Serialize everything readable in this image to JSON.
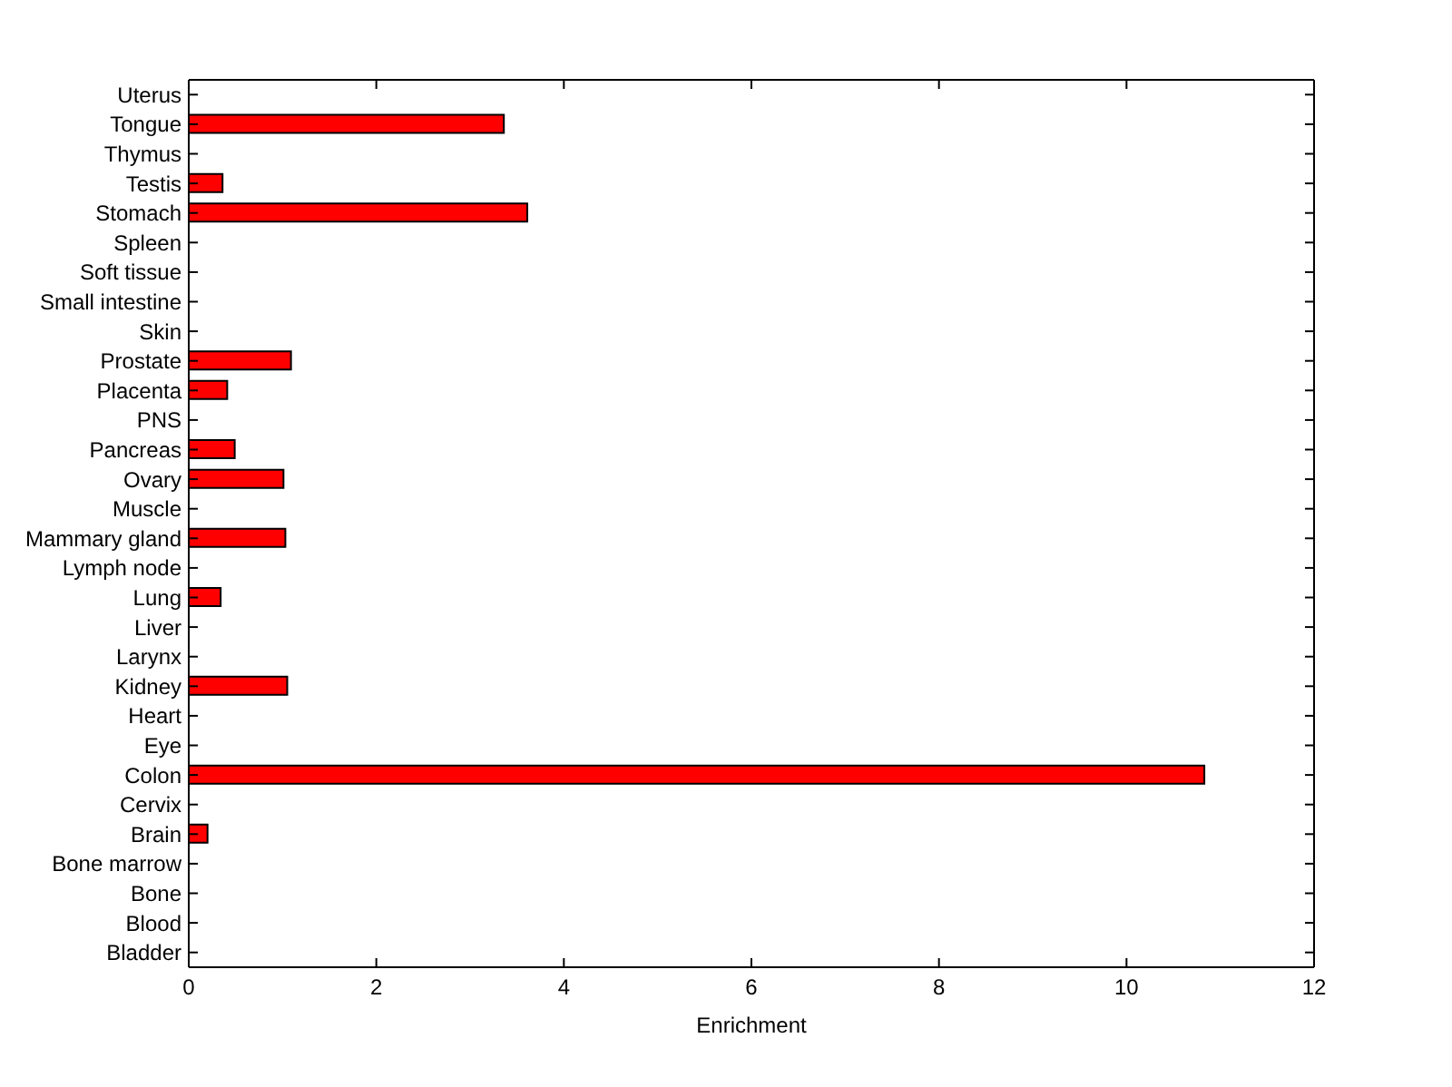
{
  "chart_data": {
    "type": "bar",
    "orientation": "horizontal",
    "xlabel": "Enrichment",
    "categories": [
      "Uterus",
      "Tongue",
      "Thymus",
      "Testis",
      "Stomach",
      "Spleen",
      "Soft tissue",
      "Small intestine",
      "Skin",
      "Prostate",
      "Placenta",
      "PNS",
      "Pancreas",
      "Ovary",
      "Muscle",
      "Mammary gland",
      "Lymph node",
      "Lung",
      "Liver",
      "Larynx",
      "Kidney",
      "Heart",
      "Eye",
      "Colon",
      "Cervix",
      "Brain",
      "Bone marrow",
      "Bone",
      "Blood",
      "Bladder"
    ],
    "values": [
      0,
      3.36,
      0,
      0.36,
      3.61,
      0,
      0,
      0,
      0,
      1.09,
      0.41,
      0,
      0.49,
      1.01,
      0,
      1.03,
      0,
      0.34,
      0,
      0,
      1.05,
      0,
      0,
      10.83,
      0,
      0.2,
      0,
      0,
      0,
      0
    ],
    "color": "#ff0000",
    "xlim": [
      0,
      12
    ],
    "xticks": [
      0,
      2,
      4,
      6,
      8,
      10,
      12
    ]
  }
}
